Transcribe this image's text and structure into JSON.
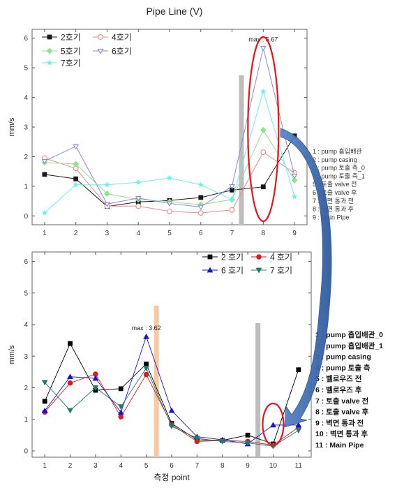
{
  "page": {
    "title": "Pipe Line (V)"
  },
  "colors": {
    "highlight_ring": "#e8141b",
    "arrow": "#3f6db1",
    "bar_gray": "#bdbdbd",
    "bar_peach": "#f7c9a3"
  },
  "chart_data": [
    {
      "type": "line",
      "ylabel": "mm/s",
      "xlabel": "",
      "x": [
        1,
        2,
        3,
        4,
        5,
        6,
        7,
        8,
        9
      ],
      "xlim": [
        0.6,
        9.4
      ],
      "ylim": [
        -0.3,
        6.3
      ],
      "yticks": [
        0,
        1,
        2,
        3,
        4,
        5,
        6
      ],
      "grid": false,
      "legend_position": "top-left",
      "series": [
        {
          "name": "2호기",
          "color": "#1a1a1a",
          "marker": "square",
          "values": [
            1.4,
            1.25,
            0.32,
            0.47,
            0.52,
            0.62,
            0.87,
            0.98,
            2.7
          ]
        },
        {
          "name": "4호기",
          "color": "#ef8a8a",
          "marker": "circle-open",
          "values": [
            1.95,
            1.6,
            0.33,
            0.33,
            0.15,
            0.1,
            0.2,
            2.15,
            1.45
          ]
        },
        {
          "name": "5호기",
          "color": "#8fe08f",
          "marker": "diamond",
          "values": [
            1.8,
            1.75,
            0.75,
            0.55,
            0.48,
            0.38,
            0.55,
            2.9,
            1.2
          ]
        },
        {
          "name": "6호기",
          "color": "#8a8ad6",
          "marker": "triangle-down-open",
          "values": [
            1.85,
            2.35,
            0.4,
            0.6,
            0.42,
            0.3,
            1.0,
            5.67,
            1.35
          ]
        },
        {
          "name": "7호기",
          "color": "#66f0f0",
          "marker": "star",
          "values": [
            0.1,
            1.05,
            1.05,
            1.13,
            1.28,
            1.05,
            0.55,
            4.2,
            0.65
          ]
        }
      ],
      "annotations": [
        {
          "text": "max : 5.67",
          "x": 8,
          "y": 5.67
        }
      ],
      "highlight_bar": {
        "x": 7.3,
        "y_top": 4.75,
        "color": "gray"
      },
      "highlight_ring": {
        "x": 8
      },
      "notes": [
        "1 : pump 흡입배관",
        "2 : pump casing",
        "3 : pump 토출 측_0",
        "4 : pump 토출 측_1",
        "5 : 토출 valve 전",
        "6 : 토출 valve 후",
        "7 : 벽면 통과 전",
        "8 : 벽면 통과 후",
        "9 : Main Pipe"
      ]
    },
    {
      "type": "line",
      "ylabel": "mm/s",
      "xlabel": "측정 point",
      "x": [
        1,
        2,
        3,
        4,
        5,
        6,
        7,
        8,
        9,
        10,
        11
      ],
      "xlim": [
        0.5,
        11.5
      ],
      "ylim": [
        -0.2,
        6.3
      ],
      "yticks": [
        0,
        1,
        2,
        3,
        4,
        5,
        6
      ],
      "grid": false,
      "legend_position": "top-right",
      "series": [
        {
          "name": "2 호기",
          "color": "#000000",
          "marker": "square",
          "values": [
            1.57,
            3.4,
            1.92,
            1.97,
            2.75,
            0.87,
            0.35,
            0.33,
            0.5,
            0.22,
            2.57
          ]
        },
        {
          "name": "4 호기",
          "color": "#e01b1b",
          "marker": "circle",
          "values": [
            1.23,
            2.15,
            2.43,
            1.08,
            2.42,
            0.83,
            0.3,
            0.33,
            0.3,
            0.18,
            0.75
          ]
        },
        {
          "name": "6 호기",
          "color": "#1515cc",
          "marker": "triangle-up",
          "values": [
            1.27,
            2.35,
            2.3,
            1.22,
            3.62,
            1.28,
            0.45,
            0.35,
            0.22,
            0.82,
            0.82
          ]
        },
        {
          "name": "7 호기",
          "color": "#1f7a6e",
          "marker": "triangle-down",
          "values": [
            2.17,
            1.28,
            2.0,
            1.4,
            2.62,
            0.78,
            0.4,
            0.3,
            0.25,
            0.15,
            0.65
          ]
        }
      ],
      "annotations": [
        {
          "text": "max : 3.62",
          "x": 5,
          "y": 3.62
        }
      ],
      "highlight_bars": [
        {
          "x": 5.4,
          "y_top": 4.6,
          "color": "peach"
        },
        {
          "x": 9.4,
          "y_top": 4.05,
          "color": "gray"
        }
      ],
      "highlight_ring": {
        "x": 10
      },
      "notes": [
        "1 : pump 흡입배관_0",
        "2 : pump 흡입배관_1",
        "3 : pump casing",
        "4 : pump 토출 측",
        "5 : 벨로우즈 전",
        "6 : 벨로우즈 후",
        "7 : 토출 valve 전",
        "8 : 토출 valve 후",
        "9 : 벽면 통과 전",
        "10 : 벽면 통과 후",
        "11 : Main Pipe"
      ]
    }
  ]
}
